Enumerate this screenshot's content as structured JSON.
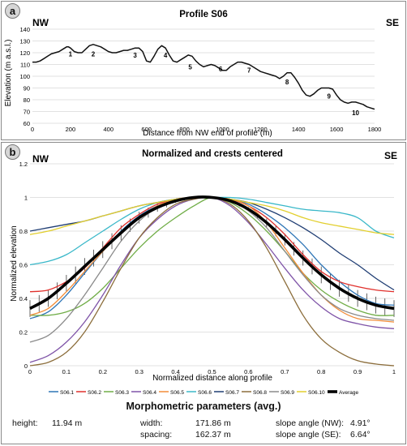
{
  "panel_a": {
    "badge": "a",
    "nw": "NW",
    "se": "SE"
  },
  "panel_b": {
    "badge": "b",
    "nw": "NW",
    "se": "SE"
  },
  "chart_data": [
    {
      "type": "line",
      "title": "Profile S06",
      "xlabel": "Distance from NW end of profile (m)",
      "ylabel": "Elevation (m a.s.l.)",
      "xlim": [
        0,
        1800
      ],
      "ylim": [
        60,
        140
      ],
      "xticks": [
        0,
        200,
        400,
        600,
        800,
        1000,
        1200,
        1400,
        1600,
        1800
      ],
      "yticks": [
        60,
        70,
        80,
        90,
        100,
        110,
        120,
        130,
        140
      ],
      "grid": "horizontal",
      "colors": {
        "line": "#111111",
        "grid": "#d9d9d9"
      },
      "series": [
        {
          "x": [
            0,
            20,
            40,
            60,
            80,
            100,
            120,
            140,
            160,
            180,
            190,
            200,
            220,
            240,
            260,
            280,
            300,
            320,
            340,
            360,
            380,
            400,
            420,
            440,
            460,
            480,
            500,
            520,
            540,
            560,
            580,
            600,
            620,
            640,
            660,
            680,
            700,
            720,
            740,
            760,
            780,
            800,
            820,
            840,
            860,
            880,
            900,
            920,
            940,
            960,
            980,
            1000,
            1020,
            1040,
            1060,
            1080,
            1100,
            1120,
            1140,
            1160,
            1180,
            1200,
            1220,
            1240,
            1260,
            1280,
            1300,
            1320,
            1340,
            1360,
            1380,
            1400,
            1420,
            1440,
            1460,
            1480,
            1500,
            1520,
            1540,
            1560,
            1580,
            1600,
            1620,
            1640,
            1660,
            1680,
            1700,
            1720,
            1740,
            1760,
            1780,
            1800
          ],
          "y": [
            112,
            112,
            113,
            115,
            117,
            119,
            120,
            121,
            123,
            125,
            125,
            124,
            121,
            120,
            120,
            123,
            126,
            127,
            126,
            125,
            123,
            121,
            120,
            120,
            121,
            122,
            122,
            123,
            124,
            124,
            121,
            113,
            112,
            117,
            123,
            126,
            124,
            118,
            113,
            112,
            114,
            116,
            118,
            117,
            113,
            110,
            108,
            109,
            110,
            109,
            107,
            105,
            105,
            108,
            110,
            112,
            112,
            111,
            110,
            108,
            106,
            104,
            103,
            102,
            101,
            100,
            98,
            100,
            103,
            103,
            99,
            94,
            88,
            84,
            83,
            85,
            88,
            90,
            90,
            90,
            89,
            84,
            80,
            78,
            77,
            78,
            78,
            77,
            76,
            74,
            73,
            72
          ]
        }
      ],
      "annotations": [
        {
          "label": "1",
          "x": 200,
          "y": 117
        },
        {
          "label": "2",
          "x": 320,
          "y": 117
        },
        {
          "label": "3",
          "x": 540,
          "y": 116
        },
        {
          "label": "4",
          "x": 700,
          "y": 116
        },
        {
          "label": "5",
          "x": 830,
          "y": 106
        },
        {
          "label": "6",
          "x": 990,
          "y": 104
        },
        {
          "label": "7",
          "x": 1140,
          "y": 103
        },
        {
          "label": "8",
          "x": 1340,
          "y": 93
        },
        {
          "label": "9",
          "x": 1560,
          "y": 81
        },
        {
          "label": "10",
          "x": 1700,
          "y": 67
        }
      ]
    },
    {
      "type": "line",
      "title": "Normalized and crests centered",
      "xlabel": "Normalized distance along profile",
      "ylabel": "Normalized elevation",
      "xlim": [
        0,
        1
      ],
      "ylim": [
        0,
        1.2
      ],
      "xticks": [
        0,
        0.1,
        0.2,
        0.3,
        0.4,
        0.5,
        0.6,
        0.7,
        0.8,
        0.9,
        1
      ],
      "yticks": [
        0,
        0.2,
        0.4,
        0.6,
        0.8,
        1,
        1.2
      ],
      "yticklabels": [
        "0",
        "0.2",
        "0.4",
        "0.6",
        "0.8",
        "1",
        "1.2"
      ],
      "grid": "horizontal",
      "legend": "bottom",
      "x": [
        0,
        0.05,
        0.1,
        0.15,
        0.2,
        0.25,
        0.3,
        0.35,
        0.4,
        0.45,
        0.5,
        0.55,
        0.6,
        0.65,
        0.7,
        0.75,
        0.8,
        0.85,
        0.9,
        0.95,
        1
      ],
      "series": [
        {
          "name": "S06.1",
          "color": "#2e75b6",
          "values": [
            0.28,
            0.32,
            0.42,
            0.55,
            0.68,
            0.8,
            0.89,
            0.95,
            0.98,
            0.995,
            1,
            0.99,
            0.96,
            0.9,
            0.82,
            0.72,
            0.6,
            0.5,
            0.42,
            0.37,
            0.36
          ]
        },
        {
          "name": "S06.2",
          "color": "#e0302c",
          "values": [
            0.44,
            0.45,
            0.5,
            0.58,
            0.7,
            0.82,
            0.9,
            0.96,
            0.99,
            1,
            1,
            0.99,
            0.95,
            0.88,
            0.78,
            0.66,
            0.56,
            0.5,
            0.47,
            0.45,
            0.44
          ]
        },
        {
          "name": "S06.3",
          "color": "#70ad47",
          "values": [
            0.3,
            0.3,
            0.32,
            0.37,
            0.46,
            0.58,
            0.7,
            0.8,
            0.88,
            0.95,
            1,
            0.97,
            0.9,
            0.8,
            0.68,
            0.55,
            0.45,
            0.38,
            0.33,
            0.3,
            0.3
          ]
        },
        {
          "name": "S06.4",
          "color": "#7f54a8",
          "values": [
            0.02,
            0.06,
            0.14,
            0.26,
            0.42,
            0.6,
            0.76,
            0.87,
            0.95,
            0.99,
            1,
            0.95,
            0.85,
            0.72,
            0.58,
            0.45,
            0.35,
            0.28,
            0.25,
            0.23,
            0.22
          ]
        },
        {
          "name": "S06.5",
          "color": "#f28c38",
          "values": [
            0.3,
            0.34,
            0.44,
            0.56,
            0.68,
            0.79,
            0.88,
            0.95,
            0.99,
            1,
            1,
            0.99,
            0.95,
            0.85,
            0.7,
            0.55,
            0.42,
            0.33,
            0.28,
            0.27,
            0.26
          ]
        },
        {
          "name": "S06.6",
          "color": "#3ab8c9",
          "values": [
            0.6,
            0.62,
            0.66,
            0.73,
            0.8,
            0.87,
            0.93,
            0.97,
            0.99,
            1,
            1,
            1,
            0.99,
            0.97,
            0.95,
            0.93,
            0.92,
            0.91,
            0.88,
            0.8,
            0.76
          ]
        },
        {
          "name": "S06.7",
          "color": "#1f3d73",
          "values": [
            0.8,
            0.82,
            0.84,
            0.86,
            0.89,
            0.92,
            0.95,
            0.97,
            0.99,
            1,
            1,
            0.99,
            0.97,
            0.93,
            0.88,
            0.82,
            0.75,
            0.67,
            0.6,
            0.52,
            0.45
          ]
        },
        {
          "name": "S06.8",
          "color": "#8c6e3c",
          "values": [
            0,
            0.02,
            0.08,
            0.2,
            0.38,
            0.58,
            0.76,
            0.88,
            0.96,
            0.99,
            1,
            0.96,
            0.86,
            0.7,
            0.5,
            0.3,
            0.16,
            0.08,
            0.03,
            0.01,
            0
          ]
        },
        {
          "name": "S06.9",
          "color": "#8a8a8a",
          "values": [
            0.14,
            0.18,
            0.28,
            0.42,
            0.58,
            0.74,
            0.86,
            0.94,
            0.98,
            1,
            1,
            0.98,
            0.92,
            0.82,
            0.68,
            0.54,
            0.42,
            0.34,
            0.3,
            0.28,
            0.27
          ]
        },
        {
          "name": "S06.10",
          "color": "#e2cf2e",
          "values": [
            0.78,
            0.8,
            0.83,
            0.86,
            0.89,
            0.92,
            0.95,
            0.97,
            0.99,
            1,
            1,
            0.99,
            0.97,
            0.95,
            0.92,
            0.88,
            0.85,
            0.83,
            0.81,
            0.79,
            0.78
          ]
        },
        {
          "name": "Average",
          "color": "#000000",
          "values": [
            0.34,
            0.4,
            0.49,
            0.59,
            0.69,
            0.79,
            0.88,
            0.94,
            0.98,
            1,
            1,
            0.98,
            0.93,
            0.85,
            0.75,
            0.64,
            0.54,
            0.46,
            0.4,
            0.36,
            0.34
          ]
        }
      ],
      "average_error": [
        0.05,
        0.05,
        0.05,
        0.05,
        0.05,
        0.045,
        0.035,
        0.025,
        0.012,
        0.004,
        0,
        0.004,
        0.012,
        0.025,
        0.035,
        0.045,
        0.05,
        0.05,
        0.05,
        0.05,
        0.05
      ]
    }
  ],
  "morphometrics": {
    "title": "Morphometric parameters (avg.)",
    "height_label": "height:",
    "height_value": "11.94 m",
    "width_label": "width:",
    "width_value": "171.86 m",
    "spacing_label": "spacing:",
    "spacing_value": "162.37 m",
    "slope_nw_label": "slope angle (NW):",
    "slope_nw_value": "4.91°",
    "slope_se_label": "slope angle (SE):",
    "slope_se_value": "6.64°"
  }
}
